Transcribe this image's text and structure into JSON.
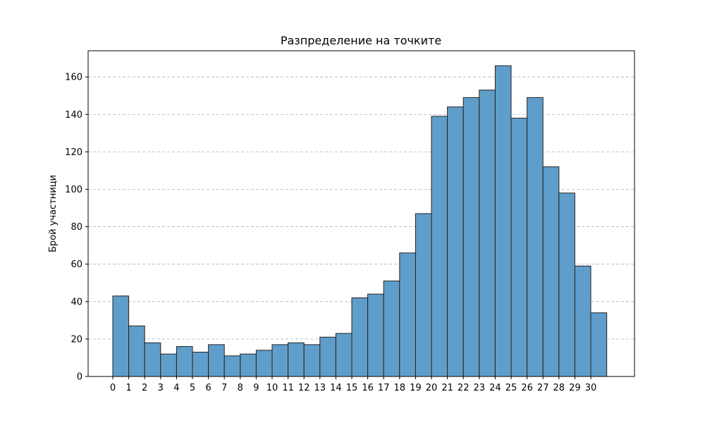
{
  "chart_data": {
    "type": "bar",
    "title": "Разпределение на точките",
    "xlabel": "",
    "ylabel": "Брой участници",
    "categories": [
      "0",
      "1",
      "2",
      "3",
      "4",
      "5",
      "6",
      "7",
      "8",
      "9",
      "10",
      "11",
      "12",
      "13",
      "14",
      "15",
      "16",
      "17",
      "18",
      "19",
      "20",
      "21",
      "22",
      "23",
      "24",
      "25",
      "26",
      "27",
      "28",
      "29",
      "30"
    ],
    "values": [
      43,
      27,
      18,
      12,
      16,
      13,
      17,
      11,
      12,
      14,
      17,
      18,
      17,
      21,
      23,
      42,
      44,
      51,
      66,
      87,
      139,
      144,
      149,
      153,
      166,
      138,
      149,
      112,
      98,
      59,
      34
    ],
    "yticks": [
      0,
      20,
      40,
      60,
      80,
      100,
      120,
      140,
      160
    ],
    "ylim": [
      0,
      174
    ],
    "grid": "y-dashed",
    "bar_color": "#5f9ecb",
    "edge_color": "#222222"
  }
}
